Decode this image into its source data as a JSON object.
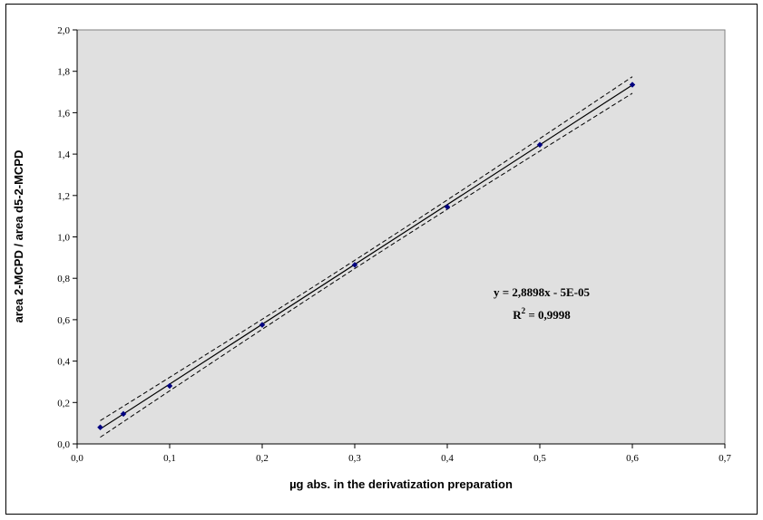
{
  "chart_data": {
    "type": "scatter",
    "title": "",
    "xlabel": "µg abs. in the derivatization preparation",
    "ylabel": "area 2-MCPD / area d5-2-MCPD",
    "xlim": [
      0,
      0.7
    ],
    "ylim": [
      0,
      2.0
    ],
    "x_ticks": [
      "0,0",
      "0,1",
      "0,2",
      "0,3",
      "0,4",
      "0,5",
      "0,6",
      "0,7"
    ],
    "y_ticks": [
      "0,0",
      "0,2",
      "0,4",
      "0,6",
      "0,8",
      "1,0",
      "1,2",
      "1,4",
      "1,6",
      "1,8",
      "2,0"
    ],
    "grid": false,
    "series": [
      {
        "points": [
          {
            "x": 0.025,
            "y": 0.08
          },
          {
            "x": 0.05,
            "y": 0.145
          },
          {
            "x": 0.1,
            "y": 0.28
          },
          {
            "x": 0.2,
            "y": 0.575
          },
          {
            "x": 0.3,
            "y": 0.865
          },
          {
            "x": 0.4,
            "y": 1.145
          },
          {
            "x": 0.5,
            "y": 1.445
          },
          {
            "x": 0.6,
            "y": 1.735
          }
        ],
        "color": "#000080"
      }
    ],
    "trendline": {
      "slope": 2.8898,
      "intercept": -5e-05,
      "x_range": [
        0.025,
        0.6
      ]
    },
    "confidence_band": {
      "upper_offset_at_ends": 0.04,
      "upper_offset_at_center": 0.02
    },
    "annotation": {
      "equation": "y = 2,8898x - 5E-05",
      "r2_prefix": "R",
      "r2_sup": "2",
      "r2_suffix": " = 0,9998"
    },
    "plot_background": "#e0e0e0"
  }
}
